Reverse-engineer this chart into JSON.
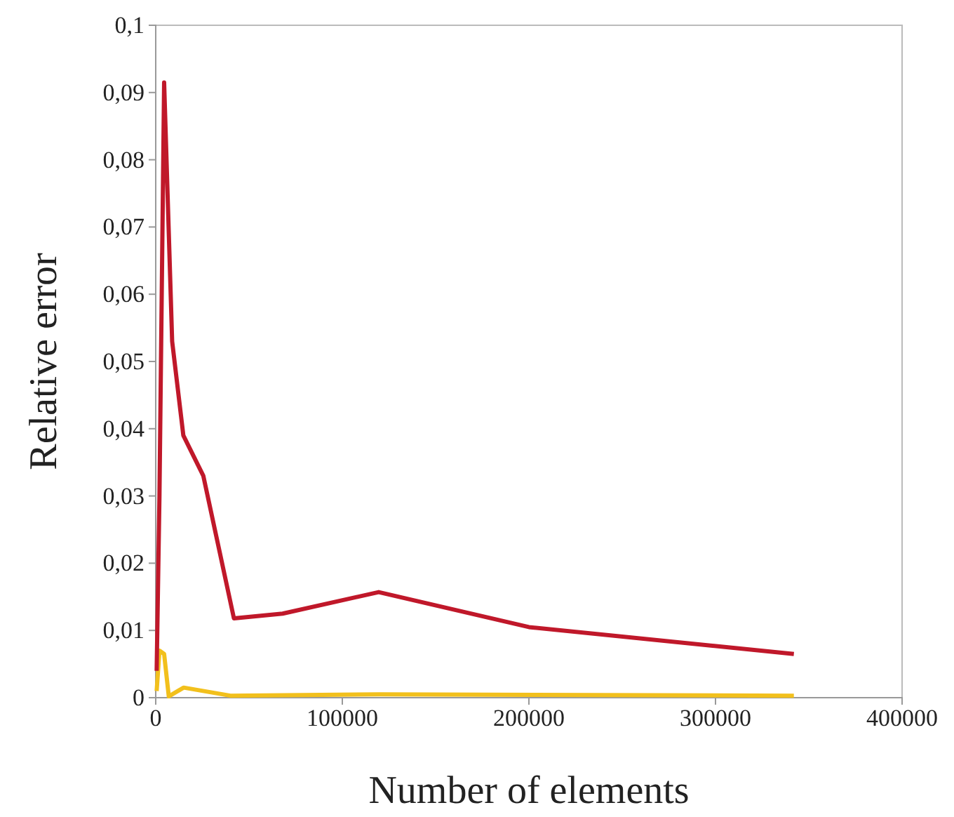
{
  "chart_data": {
    "type": "line",
    "xlabel": "Number of elements",
    "ylabel": "Relative error",
    "xlim": [
      0,
      400000
    ],
    "xticks": [
      0,
      100000,
      200000,
      300000,
      400000
    ],
    "ylim": [
      0,
      0.1
    ],
    "yticks": [
      {
        "value": 0,
        "label": "0"
      },
      {
        "value": 0.01,
        "label": "0,01"
      },
      {
        "value": 0.02,
        "label": "0,02"
      },
      {
        "value": 0.03,
        "label": "0,03"
      },
      {
        "value": 0.04,
        "label": "0,04"
      },
      {
        "value": 0.05,
        "label": "0,05"
      },
      {
        "value": 0.06,
        "label": "0,06"
      },
      {
        "value": 0.07,
        "label": "0,07"
      },
      {
        "value": 0.08,
        "label": "0,08"
      },
      {
        "value": 0.09,
        "label": "0,09"
      },
      {
        "value": 0.1,
        "label": "0,1"
      }
    ],
    "grid": false,
    "series": [
      {
        "color": "#c0182a",
        "x": [
          500,
          2000,
          4500,
          8800,
          14800,
          25500,
          41900,
          68000,
          119500,
          200000,
          342000
        ],
        "values": [
          0.004,
          0.03,
          0.0915,
          0.053,
          0.039,
          0.033,
          0.0118,
          0.0125,
          0.0157,
          0.0105,
          0.0065
        ]
      },
      {
        "color": "#f2c01c",
        "x": [
          500,
          2000,
          4500,
          7000,
          15000,
          40000,
          120000,
          342000
        ],
        "values": [
          0.001,
          0.007,
          0.0065,
          0.0002,
          0.0015,
          0.0003,
          0.0005,
          0.0003
        ]
      }
    ]
  }
}
